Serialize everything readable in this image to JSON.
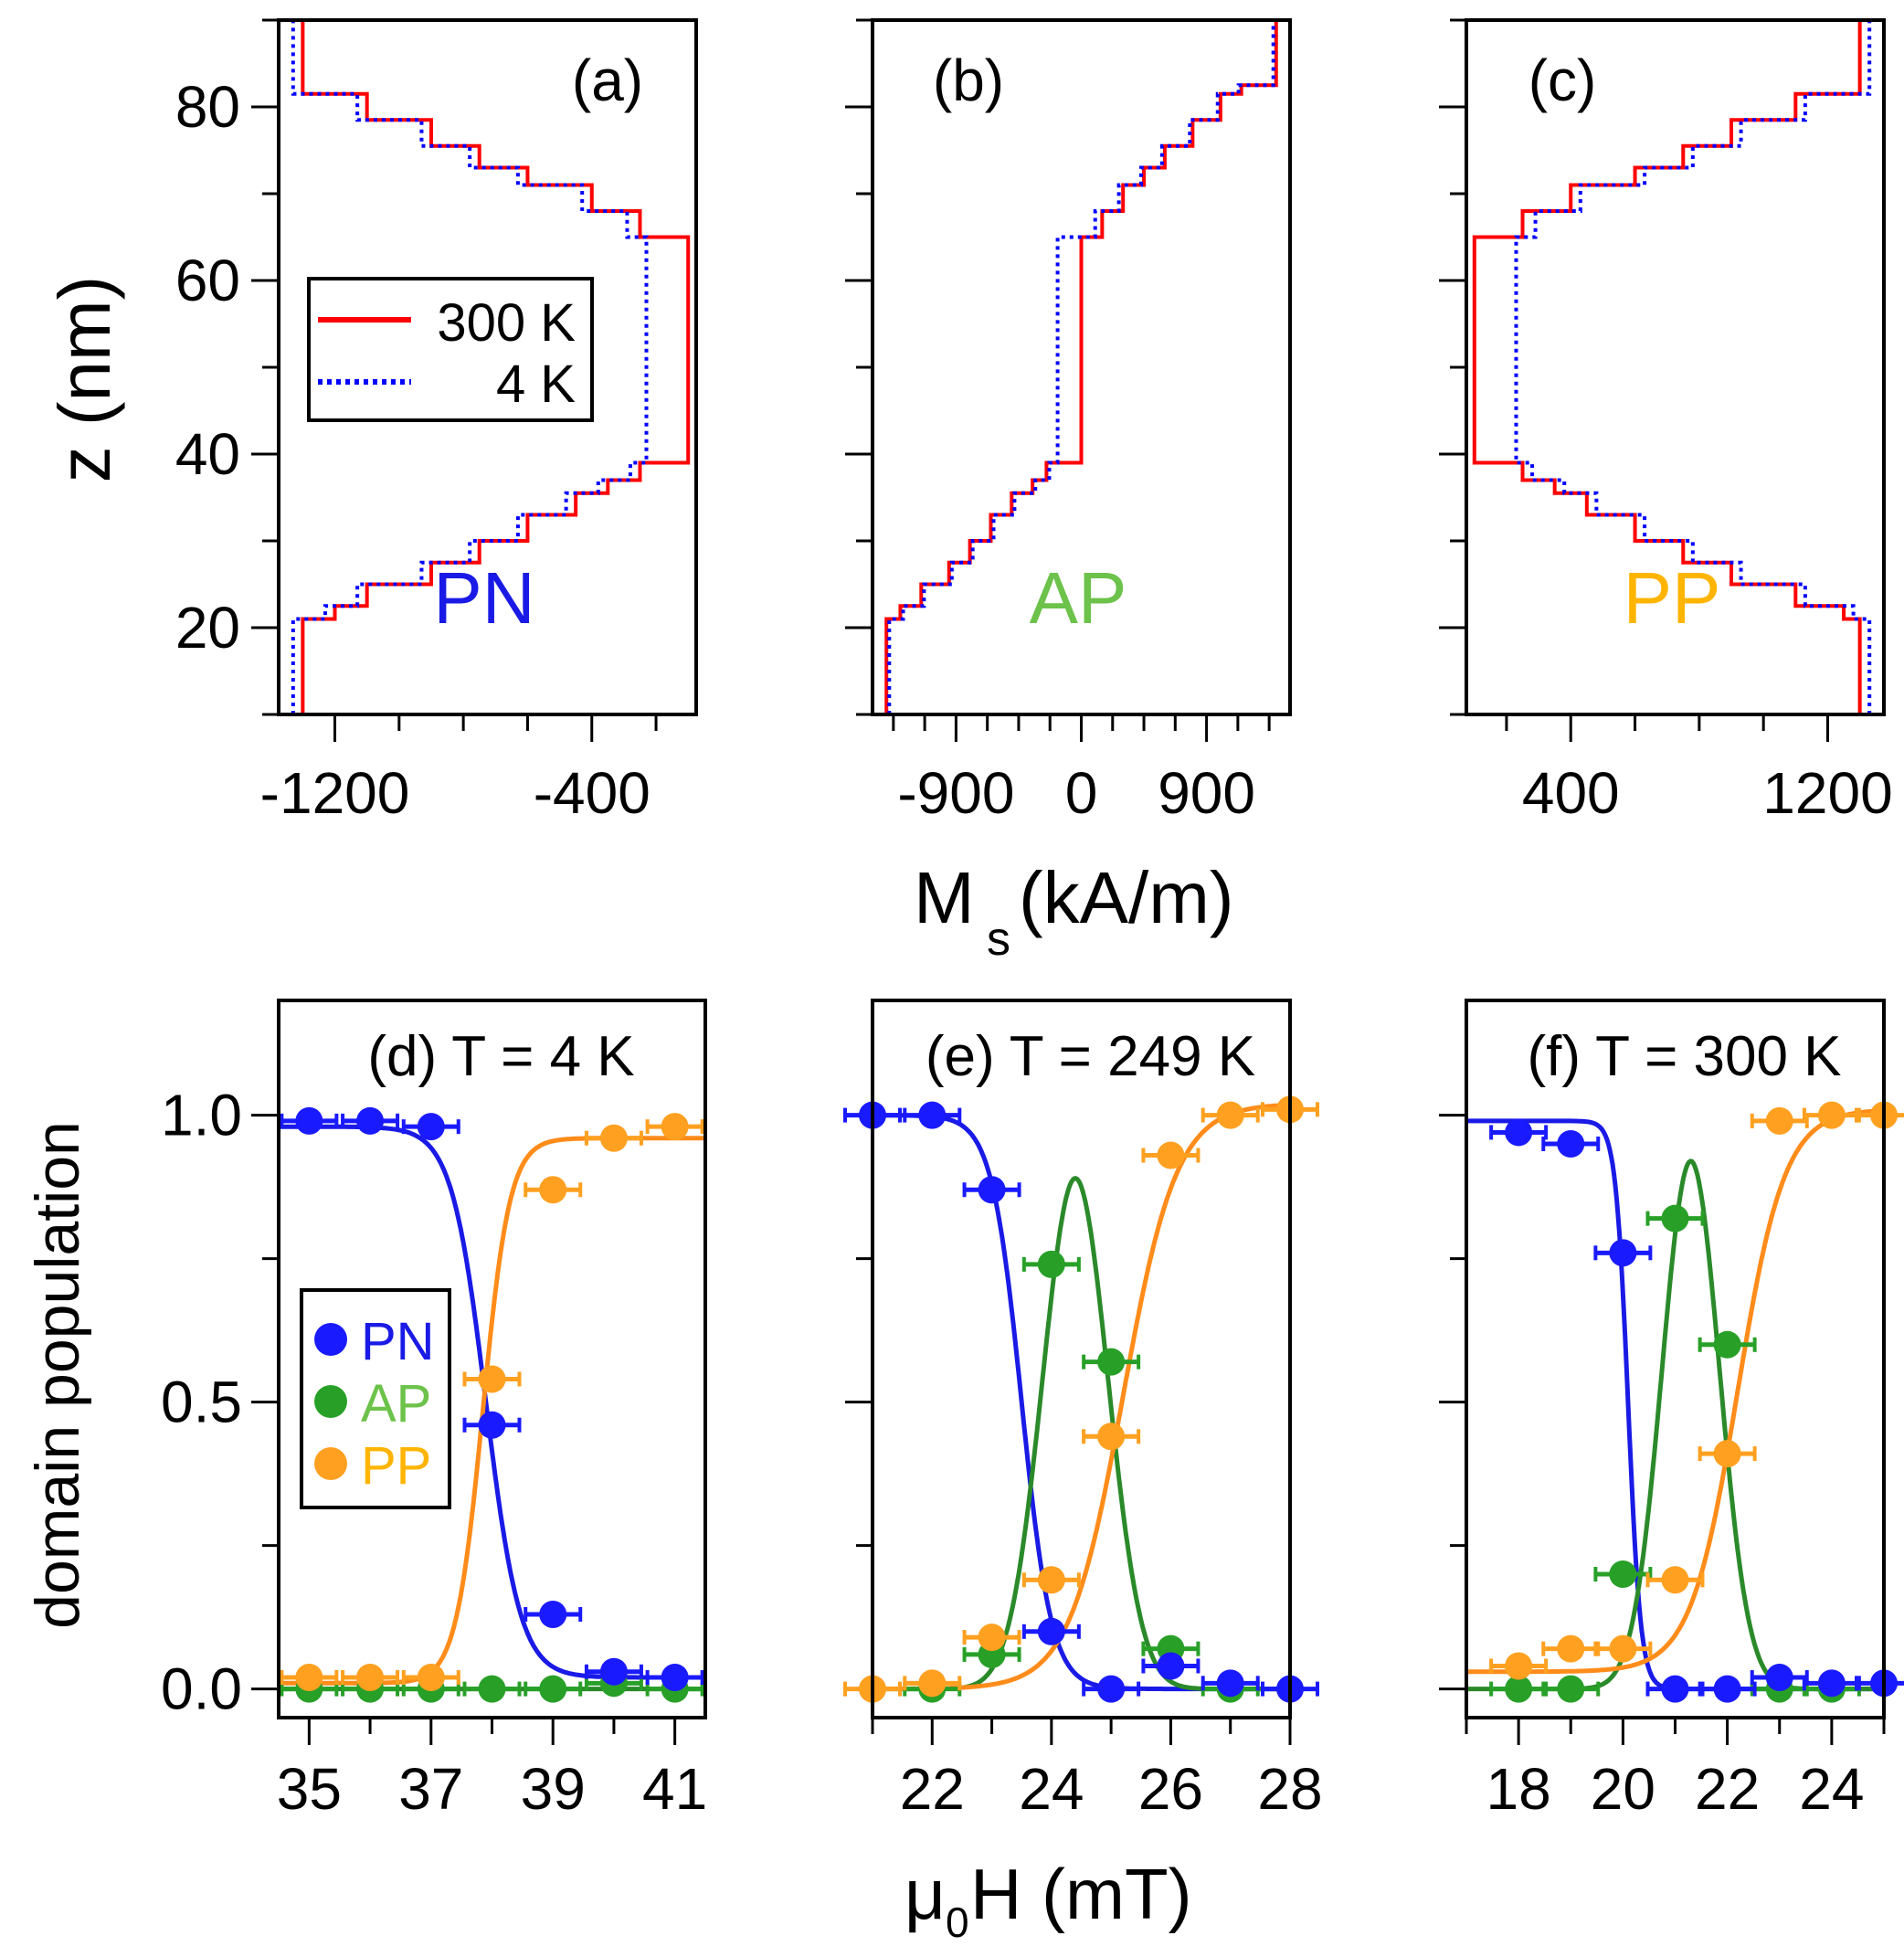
{
  "chart_data": [
    {
      "id": "a",
      "type": "line",
      "panel_label": "(a)",
      "config_label": "PN",
      "x_ticks": [
        -1200,
        -400
      ],
      "xlim": [
        -1375,
        -75
      ],
      "ylim": [
        10,
        90
      ],
      "y_ticks": [
        20,
        40,
        60,
        80
      ],
      "series": [
        {
          "name": "300 K",
          "style": "solid",
          "color": "#ff0000",
          "steps": [
            [
              10,
              -1300
            ],
            [
              21,
              -1200
            ],
            [
              22.5,
              -1100
            ],
            [
              25,
              -900
            ],
            [
              27.5,
              -750
            ],
            [
              30,
              -600
            ],
            [
              33,
              -450
            ],
            [
              35.5,
              -350
            ],
            [
              37,
              -250
            ],
            [
              39,
              -100
            ],
            [
              65,
              -250
            ],
            [
              68,
              -400
            ],
            [
              71,
              -600
            ],
            [
              73,
              -750
            ],
            [
              75.5,
              -900
            ],
            [
              78.5,
              -1100
            ],
            [
              81.5,
              -1300
            ],
            [
              90,
              -1300
            ]
          ]
        },
        {
          "name": "4 K",
          "style": "dotted",
          "color": "#0000ff",
          "steps": [
            [
              10,
              -1330
            ],
            [
              21,
              -1230
            ],
            [
              22.5,
              -1130
            ],
            [
              25,
              -930
            ],
            [
              27.5,
              -780
            ],
            [
              30,
              -630
            ],
            [
              33,
              -480
            ],
            [
              35.5,
              -380
            ],
            [
              37,
              -280
            ],
            [
              39,
              -230
            ],
            [
              65,
              -290
            ],
            [
              68,
              -430
            ],
            [
              71,
              -630
            ],
            [
              73,
              -780
            ],
            [
              75.5,
              -930
            ],
            [
              78.5,
              -1130
            ],
            [
              81.5,
              -1330
            ],
            [
              90,
              -1330
            ]
          ]
        }
      ]
    },
    {
      "id": "b",
      "type": "line",
      "panel_label": "(b)",
      "config_label": "AP",
      "x_ticks": [
        -900,
        0,
        900
      ],
      "xlim": [
        -1500,
        1500
      ],
      "ylim": [
        10,
        90
      ],
      "y_ticks": [
        20,
        40,
        60,
        80
      ],
      "series": [
        {
          "name": "300 K",
          "style": "solid",
          "color": "#ff0000",
          "steps": [
            [
              10,
              -1400
            ],
            [
              21,
              -1300
            ],
            [
              22.5,
              -1150
            ],
            [
              25,
              -950
            ],
            [
              27.5,
              -800
            ],
            [
              30,
              -650
            ],
            [
              33,
              -500
            ],
            [
              35.5,
              -350
            ],
            [
              37,
              -250
            ],
            [
              39,
              -150
            ],
            [
              39,
              0
            ],
            [
              65,
              150
            ],
            [
              68,
              300
            ],
            [
              71,
              450
            ],
            [
              73,
              600
            ],
            [
              75.5,
              800
            ],
            [
              78.5,
              1000
            ],
            [
              81.5,
              1150
            ],
            [
              82.5,
              1400
            ],
            [
              90,
              1400
            ]
          ]
        },
        {
          "name": "4 K",
          "style": "dotted",
          "color": "#0000ff",
          "steps": [
            [
              10,
              -1380
            ],
            [
              21,
              -1280
            ],
            [
              22.5,
              -1130
            ],
            [
              25,
              -930
            ],
            [
              27.5,
              -780
            ],
            [
              30,
              -630
            ],
            [
              33,
              -480
            ],
            [
              35.5,
              -330
            ],
            [
              37,
              -230
            ],
            [
              39,
              -170
            ],
            [
              64.5,
              -170
            ],
            [
              65,
              100
            ],
            [
              68,
              270
            ],
            [
              71,
              430
            ],
            [
              73,
              580
            ],
            [
              75.5,
              780
            ],
            [
              78.5,
              980
            ],
            [
              81.5,
              1130
            ],
            [
              82.5,
              1380
            ],
            [
              90,
              1380
            ]
          ]
        }
      ]
    },
    {
      "id": "c",
      "type": "line",
      "panel_label": "(c)",
      "config_label": "PP",
      "x_ticks": [
        400,
        1200
      ],
      "xlim": [
        75,
        1375
      ],
      "ylim": [
        10,
        90
      ],
      "y_ticks": [
        20,
        40,
        60,
        80
      ],
      "series": [
        {
          "name": "300 K",
          "style": "solid",
          "color": "#ff0000",
          "steps": [
            [
              10,
              1300
            ],
            [
              21,
              1250
            ],
            [
              22.5,
              1100
            ],
            [
              25,
              900
            ],
            [
              27.5,
              750
            ],
            [
              30,
              600
            ],
            [
              33,
              450
            ],
            [
              35.5,
              350
            ],
            [
              37,
              250
            ],
            [
              39,
              100
            ],
            [
              65,
              250
            ],
            [
              68,
              400
            ],
            [
              71,
              600
            ],
            [
              73,
              750
            ],
            [
              75.5,
              900
            ],
            [
              78.5,
              1100
            ],
            [
              81.5,
              1300
            ],
            [
              90,
              1300
            ]
          ]
        },
        {
          "name": "4 K",
          "style": "dotted",
          "color": "#0000ff",
          "steps": [
            [
              10,
              1330
            ],
            [
              21,
              1280
            ],
            [
              22.5,
              1130
            ],
            [
              25,
              930
            ],
            [
              27.5,
              780
            ],
            [
              30,
              630
            ],
            [
              33,
              480
            ],
            [
              35.5,
              380
            ],
            [
              37,
              280
            ],
            [
              39,
              230
            ],
            [
              65,
              290
            ],
            [
              68,
              430
            ],
            [
              71,
              630
            ],
            [
              73,
              780
            ],
            [
              75.5,
              930
            ],
            [
              78.5,
              1130
            ],
            [
              81.5,
              1330
            ],
            [
              90,
              1330
            ]
          ]
        }
      ]
    },
    {
      "id": "d",
      "type": "scatter",
      "panel_label": "(d) T = 4 K",
      "xlim": [
        34.5,
        41.5
      ],
      "ylim": [
        -0.05,
        1.2
      ],
      "x_ticks": [
        35,
        37,
        39,
        41
      ],
      "y_ticks": [
        0.0,
        0.5,
        1.0
      ],
      "points": {
        "PN": [
          [
            35,
            0.99
          ],
          [
            36,
            0.99
          ],
          [
            37,
            0.98
          ],
          [
            38,
            0.46
          ],
          [
            39,
            0.13
          ],
          [
            40,
            0.03
          ],
          [
            41,
            0.02
          ]
        ],
        "AP": [
          [
            35,
            0.0
          ],
          [
            36,
            0.0
          ],
          [
            37,
            0.0
          ],
          [
            38,
            0.0
          ],
          [
            39,
            0.0
          ],
          [
            40,
            0.01
          ],
          [
            41,
            0.0
          ]
        ],
        "PP": [
          [
            35,
            0.02
          ],
          [
            36,
            0.02
          ],
          [
            37,
            0.02
          ],
          [
            38,
            0.54
          ],
          [
            39,
            0.87
          ],
          [
            40,
            0.96
          ],
          [
            41,
            0.98
          ]
        ]
      },
      "fits": {
        "PN": {
          "kind": "sigmoid_down",
          "top": 0.98,
          "bottom": 0.02,
          "x0": 37.9,
          "w": 0.28
        },
        "PP": {
          "kind": "sigmoid_up",
          "top": 0.96,
          "bottom": 0.01,
          "x0": 37.85,
          "w": 0.22
        }
      }
    },
    {
      "id": "e",
      "type": "scatter",
      "panel_label": "(e) T = 249 K",
      "xlim": [
        21,
        28
      ],
      "ylim": [
        -0.05,
        1.2
      ],
      "x_ticks": [
        22,
        24,
        26,
        28
      ],
      "y_ticks": [
        0.0,
        0.5,
        1.0
      ],
      "points": {
        "PN": [
          [
            21,
            1.0
          ],
          [
            22,
            1.0
          ],
          [
            23,
            0.87
          ],
          [
            24,
            0.1
          ],
          [
            25,
            0.0
          ],
          [
            26,
            0.04
          ],
          [
            27,
            0.01
          ],
          [
            28,
            0.0
          ]
        ],
        "AP": [
          [
            22,
            0.0
          ],
          [
            23,
            0.06
          ],
          [
            24,
            0.74
          ],
          [
            25,
            0.57
          ],
          [
            26,
            0.07
          ],
          [
            27,
            0.0
          ]
        ],
        "PP": [
          [
            21,
            0.0
          ],
          [
            22,
            0.01
          ],
          [
            23,
            0.09
          ],
          [
            24,
            0.19
          ],
          [
            25,
            0.44
          ],
          [
            26,
            0.93
          ],
          [
            27,
            1.0
          ],
          [
            28,
            1.01
          ]
        ]
      },
      "fits": {
        "PN": {
          "kind": "sigmoid_down",
          "top": 1.0,
          "bottom": 0.0,
          "x0": 23.5,
          "w": 0.25
        },
        "AP": {
          "kind": "gaussian",
          "amp": 0.89,
          "x0": 24.4,
          "sigma": 0.55
        },
        "PP": {
          "kind": "sigmoid_up",
          "top": 1.02,
          "bottom": 0.0,
          "x0": 25.2,
          "w": 0.45
        }
      }
    },
    {
      "id": "f",
      "type": "scatter",
      "panel_label": "(f) T = 300 K",
      "xlim": [
        17,
        25
      ],
      "ylim": [
        -0.05,
        1.2
      ],
      "x_ticks": [
        18,
        20,
        22,
        24
      ],
      "y_ticks": [
        0.0,
        0.5,
        1.0
      ],
      "points": {
        "PN": [
          [
            18,
            0.97
          ],
          [
            19,
            0.95
          ],
          [
            20,
            0.76
          ],
          [
            21,
            0.0
          ],
          [
            22,
            0.0
          ],
          [
            23,
            0.02
          ],
          [
            24,
            0.01
          ],
          [
            25,
            0.01
          ]
        ],
        "AP": [
          [
            18,
            0.0
          ],
          [
            19,
            0.0
          ],
          [
            20,
            0.2
          ],
          [
            21,
            0.82
          ],
          [
            22,
            0.6
          ],
          [
            23,
            0.0
          ],
          [
            24,
            0.0
          ]
        ],
        "PP": [
          [
            18,
            0.04
          ],
          [
            19,
            0.07
          ],
          [
            20,
            0.07
          ],
          [
            21,
            0.19
          ],
          [
            22,
            0.41
          ],
          [
            23,
            0.99
          ],
          [
            24,
            1.0
          ],
          [
            25,
            1.0
          ]
        ]
      },
      "fits": {
        "PN": {
          "kind": "sigmoid_down",
          "top": 0.99,
          "bottom": 0.0,
          "x0": 20.1,
          "w": 0.12
        },
        "AP": {
          "kind": "gaussian",
          "amp": 0.92,
          "x0": 21.3,
          "sigma": 0.55
        },
        "PP": {
          "kind": "sigmoid_up",
          "top": 1.01,
          "bottom": 0.03,
          "x0": 22.2,
          "w": 0.45
        }
      }
    }
  ],
  "labels": {
    "y_top": "z (nm)",
    "x_top_main": "M",
    "x_top_sub": "s",
    "x_top_unit": " (kA/m)",
    "y_bottom": "domain population",
    "x_bottom_pre": "μ",
    "x_bottom_sub": "0",
    "x_bottom_post": "H (mT)",
    "legend_top": [
      "300 K",
      "4 K"
    ],
    "legend_bottom": [
      "PN",
      "AP",
      "PP"
    ]
  },
  "colors": {
    "PN": "#1a1ae6",
    "AP": "#2a8a2a",
    "PP": "#ff8c1a",
    "PN_label": "#1a1ae6",
    "AP_label": "#6cc24a",
    "PP_label": "#ffb400",
    "red": "#ff0000",
    "blue": "#0000ff",
    "AP_marker": "#28a028",
    "PP_marker": "#ffa020",
    "PN_marker": "#1a1aff"
  },
  "tick_labels": {
    "a": [
      "-1200",
      "-400"
    ],
    "b": [
      "-900",
      "0",
      "900"
    ],
    "c": [
      "400",
      "1200"
    ],
    "z": [
      "20",
      "40",
      "60",
      "80"
    ],
    "pop": [
      "0.0",
      "0.5",
      "1.0"
    ],
    "d": [
      "35",
      "37",
      "39",
      "41"
    ],
    "e": [
      "22",
      "24",
      "26",
      "28"
    ],
    "f": [
      "18",
      "20",
      "22",
      "24"
    ]
  }
}
